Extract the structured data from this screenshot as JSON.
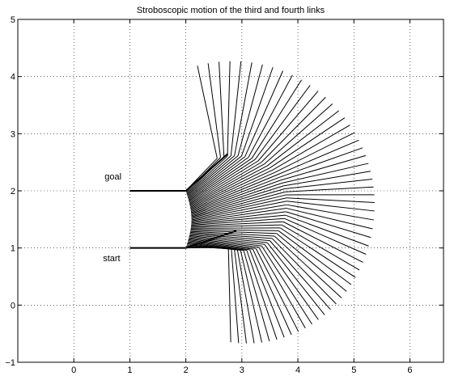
{
  "chart_data": {
    "type": "line",
    "title": "Stroboscopic motion of the third and fourth links",
    "xlabel": "",
    "ylabel": "",
    "xlim": [
      -1,
      6.6
    ],
    "ylim": [
      -1,
      5
    ],
    "xticks": [
      0,
      1,
      2,
      3,
      4,
      5,
      6
    ],
    "yticks": [
      -1,
      0,
      1,
      2,
      3,
      4,
      5
    ],
    "grid": true,
    "grid_style": "dotted",
    "line_color": "#000000",
    "annotations": [
      {
        "text": "goal",
        "x": 0.55,
        "y": 2.2
      },
      {
        "text": "start",
        "x": 0.52,
        "y": 0.77
      }
    ],
    "strobe": {
      "frames": 56,
      "base_start": [
        1.0,
        1.0
      ],
      "base_goal": [
        1.0,
        2.0
      ],
      "link3_length": 1.02,
      "link4_length": 1.75,
      "link3_angle_start_deg": 2,
      "link3_angle_goal_deg": 0,
      "link4_angle_start_deg": 168,
      "link4_angle_goal_deg": -160,
      "mid_joint": [
        2.9,
        1.9
      ]
    }
  }
}
